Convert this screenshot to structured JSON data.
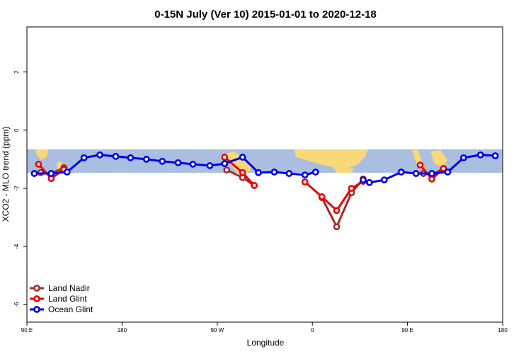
{
  "chart_data": {
    "type": "line",
    "title": "0-15N July (Ver 10)   2015-01-01 to 2020-12-18",
    "x_label": "Longitude",
    "y_label": "XCO2 - MLO trend (ppm)",
    "xlim": [
      90,
      540
    ],
    "xticks": [
      {
        "value": 90,
        "label": "90 E"
      },
      {
        "value": 180,
        "label": "180"
      },
      {
        "value": 270,
        "label": "90 W"
      },
      {
        "value": 360,
        "label": "0"
      },
      {
        "value": 450,
        "label": "90 E"
      },
      {
        "value": 540,
        "label": "180"
      }
    ],
    "ylim": [
      -6.6,
      3.55
    ],
    "yticks": [
      -6,
      -4,
      -2,
      0,
      2
    ],
    "legend": "bottom-left",
    "series": [
      {
        "name": "Land Nadir",
        "color": "#a52a2a",
        "x": [
          103,
          113,
          125,
          200,
          279,
          294,
          305,
          330,
          369,
          383,
          397,
          408,
          430,
          465,
          473,
          484
        ],
        "values": [
          -1.46,
          -1.49,
          -1.29,
          null,
          -1.37,
          -1.63,
          -1.9,
          null,
          -2.32,
          -3.32,
          -2.15,
          -1.68,
          null,
          -1.49,
          -1.54,
          -1.32
        ]
      },
      {
        "name": "Land Glint",
        "color": "#ee0000",
        "x": [
          101,
          113,
          125,
          200,
          277,
          294,
          305,
          330,
          353,
          369,
          383,
          397,
          408,
          430,
          462,
          473,
          484
        ],
        "values": [
          -1.17,
          -1.66,
          -1.35,
          null,
          -0.93,
          -1.46,
          -1.9,
          null,
          -1.78,
          -2.29,
          -2.76,
          -2.0,
          -1.76,
          null,
          -1.2,
          -1.68,
          -1.32
        ]
      },
      {
        "name": "Ocean Glint",
        "color": "#0000ee",
        "x": [
          97,
          113,
          128,
          144,
          159,
          174,
          188,
          203,
          218,
          233,
          247,
          263,
          277,
          294,
          309,
          324,
          338,
          353,
          363,
          385,
          408,
          414,
          428,
          444,
          458,
          473,
          488,
          503,
          519,
          533
        ],
        "values": [
          -1.49,
          -1.49,
          -1.44,
          -0.95,
          -0.85,
          -0.9,
          -0.95,
          -1.0,
          -1.07,
          -1.12,
          -1.17,
          -1.22,
          -1.15,
          -0.93,
          -1.46,
          -1.44,
          -1.49,
          -1.54,
          -1.44,
          null,
          -1.71,
          -1.8,
          -1.71,
          -1.44,
          -1.49,
          -1.49,
          -1.44,
          -0.95,
          -0.85,
          -0.88
        ]
      }
    ]
  }
}
